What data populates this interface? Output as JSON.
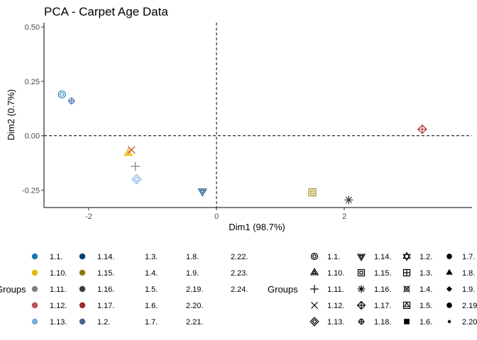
{
  "chart_data": {
    "type": "scatter",
    "title": "PCA - Carpet Age Data",
    "xlabel": "Dim1 (98.7%)",
    "ylabel": "Dim2 (0.7%)",
    "xlim": [
      -2.7,
      4.0
    ],
    "ylim": [
      -0.33,
      0.52
    ],
    "x_ticks": [
      {
        "value": -2,
        "label": "-2"
      },
      {
        "value": 0,
        "label": "0"
      },
      {
        "value": 2,
        "label": "2"
      }
    ],
    "y_ticks": [
      {
        "value": 0.5,
        "label": "0.50"
      },
      {
        "value": 0.25,
        "label": "0.25"
      },
      {
        "value": 0.0,
        "label": "0.00"
      },
      {
        "value": -0.25,
        "label": "-0.25"
      }
    ],
    "reference_lines": {
      "x": 0,
      "y": 0,
      "style": "dashed"
    },
    "grid": false,
    "points": [
      {
        "x": -2.42,
        "y": 0.19,
        "color": "#2E86C1",
        "shape": "circle-ring"
      },
      {
        "x": -2.27,
        "y": 0.16,
        "color": "#4A6FA5",
        "shape": "circle-plus"
      },
      {
        "x": -1.38,
        "y": -0.08,
        "color": "#E6B800",
        "shape": "triangle-in-triangle"
      },
      {
        "x": -1.33,
        "y": -0.065,
        "color": "#C0392B",
        "shape": "x"
      },
      {
        "x": -1.27,
        "y": -0.14,
        "color": "#7F7F7F",
        "shape": "plus"
      },
      {
        "x": -1.25,
        "y": -0.2,
        "color": "#85B4E0",
        "shape": "diamond-in-diamond"
      },
      {
        "x": -0.22,
        "y": -0.255,
        "color": "#1A5E8A",
        "shape": "triangle-down-in"
      },
      {
        "x": 1.5,
        "y": -0.26,
        "color": "#9C8A10",
        "shape": "square-in-square"
      },
      {
        "x": 2.07,
        "y": -0.295,
        "color": "#333333",
        "shape": "asterisk"
      },
      {
        "x": 3.22,
        "y": 0.03,
        "color": "#B03A3A",
        "shape": "diamond-plus"
      }
    ],
    "legends": [
      {
        "title": "Groups",
        "type": "color",
        "entries": [
          {
            "label": "1.1.",
            "color": "#1F77B4"
          },
          {
            "label": "1.10.",
            "color": "#E6B800"
          },
          {
            "label": "1.11.",
            "color": "#808080"
          },
          {
            "label": "1.12.",
            "color": "#C0504D"
          },
          {
            "label": "1.13.",
            "color": "#7AAAD8"
          },
          {
            "label": "1.14.",
            "color": "#003F6B"
          },
          {
            "label": "1.15.",
            "color": "#8B7A00"
          },
          {
            "label": "1.16.",
            "color": "#3A3A3A"
          },
          {
            "label": "1.17.",
            "color": "#A52A2A"
          },
          {
            "label": "1.2.",
            "color": "#4A6690"
          },
          {
            "label": "1.3.",
            "color": ""
          },
          {
            "label": "1.4.",
            "color": ""
          },
          {
            "label": "1.5.",
            "color": ""
          },
          {
            "label": "1.6.",
            "color": ""
          },
          {
            "label": "1.7.",
            "color": ""
          },
          {
            "label": "1.8.",
            "color": ""
          },
          {
            "label": "1.9.",
            "color": ""
          },
          {
            "label": "2.19.",
            "color": ""
          },
          {
            "label": "2.20.",
            "color": ""
          },
          {
            "label": "2.21.",
            "color": ""
          },
          {
            "label": "2.22.",
            "color": ""
          },
          {
            "label": "2.23.",
            "color": ""
          },
          {
            "label": "2.24.",
            "color": ""
          }
        ]
      },
      {
        "title": "Groups",
        "type": "shape",
        "entries": [
          {
            "label": "1.1.",
            "shape": "circle-ring"
          },
          {
            "label": "1.10.",
            "shape": "triangle-in-triangle"
          },
          {
            "label": "1.11.",
            "shape": "plus"
          },
          {
            "label": "1.12.",
            "shape": "x"
          },
          {
            "label": "1.13.",
            "shape": "diamond-in-diamond"
          },
          {
            "label": "1.14.",
            "shape": "triangle-down-in"
          },
          {
            "label": "1.15.",
            "shape": "square-in-square"
          },
          {
            "label": "1.16.",
            "shape": "asterisk"
          },
          {
            "label": "1.17.",
            "shape": "diamond-plus"
          },
          {
            "label": "1.18.",
            "shape": "circle-plus"
          },
          {
            "label": "1.2.",
            "shape": "star-of-david"
          },
          {
            "label": "1.3.",
            "shape": "square-plus"
          },
          {
            "label": "1.4.",
            "shape": "circle-x"
          },
          {
            "label": "1.5.",
            "shape": "square-triangle"
          },
          {
            "label": "1.6.",
            "shape": "filled-square"
          },
          {
            "label": "1.7.",
            "shape": "filled-circle"
          },
          {
            "label": "1.8.",
            "shape": "filled-triangle"
          },
          {
            "label": "1.9.",
            "shape": "filled-diamond"
          },
          {
            "label": "2.19",
            "shape": "filled-circle"
          },
          {
            "label": "2.20",
            "shape": "small-diamond"
          }
        ]
      }
    ]
  }
}
